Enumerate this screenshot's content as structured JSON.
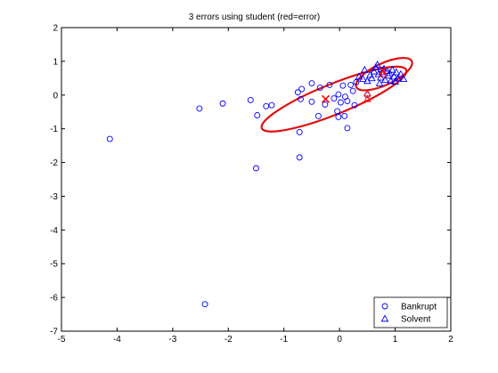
{
  "chart_data": {
    "type": "scatter",
    "title": "3 errors using student (red=error)",
    "xlabel": "",
    "ylabel": "",
    "xlim": [
      -5,
      2
    ],
    "ylim": [
      -7,
      2
    ],
    "xticks": [
      "-5",
      "-4",
      "-3",
      "-2",
      "-1",
      "0",
      "1",
      "2"
    ],
    "yticks": [
      "-7",
      "-6",
      "-5",
      "-4",
      "-3",
      "-2",
      "-1",
      "0",
      "1",
      "2"
    ],
    "grid": false,
    "legend_position": "bottom-right",
    "series": [
      {
        "name": "Bankrupt",
        "marker": "circle",
        "color": "#0000ff",
        "points": [
          [
            -4.13,
            -1.3
          ],
          [
            -2.42,
            -6.2
          ],
          [
            -2.52,
            -0.4
          ],
          [
            -2.1,
            -0.25
          ],
          [
            -1.6,
            -0.15
          ],
          [
            -1.48,
            -0.6
          ],
          [
            -1.5,
            -2.17
          ],
          [
            -1.32,
            -0.33
          ],
          [
            -1.22,
            -0.3
          ],
          [
            -0.75,
            0.08
          ],
          [
            -0.68,
            0.18
          ],
          [
            -0.7,
            -0.12
          ],
          [
            -0.72,
            -1.1
          ],
          [
            -0.72,
            -1.85
          ],
          [
            -0.5,
            0.35
          ],
          [
            -0.5,
            -0.2
          ],
          [
            -0.38,
            -0.62
          ],
          [
            -0.35,
            0.22
          ],
          [
            -0.26,
            -0.28
          ],
          [
            -0.18,
            0.3
          ],
          [
            -0.1,
            -0.1
          ],
          [
            -0.02,
            0.02
          ],
          [
            -0.04,
            -0.48
          ],
          [
            -0.02,
            -0.65
          ],
          [
            0.02,
            -0.22
          ],
          [
            0.06,
            0.28
          ],
          [
            0.09,
            -0.62
          ],
          [
            0.1,
            -0.05
          ],
          [
            0.14,
            -0.18
          ],
          [
            0.14,
            -0.98
          ],
          [
            0.2,
            0.3
          ],
          [
            0.24,
            0.12
          ],
          [
            0.27,
            -0.3
          ],
          [
            0.3,
            0.38
          ],
          [
            0.5,
            0.0
          ],
          [
            0.75,
            0.75
          ]
        ]
      },
      {
        "name": "Solvent",
        "marker": "triangle",
        "color": "#0000ff",
        "points": [
          [
            0.35,
            0.55
          ],
          [
            0.42,
            0.48
          ],
          [
            0.45,
            0.75
          ],
          [
            0.5,
            0.42
          ],
          [
            0.55,
            0.6
          ],
          [
            0.58,
            0.5
          ],
          [
            0.62,
            0.7
          ],
          [
            0.65,
            0.82
          ],
          [
            0.68,
            0.9
          ],
          [
            0.7,
            0.62
          ],
          [
            0.72,
            0.35
          ],
          [
            0.74,
            0.52
          ],
          [
            0.76,
            0.68
          ],
          [
            0.8,
            0.78
          ],
          [
            0.82,
            0.45
          ],
          [
            0.85,
            0.72
          ],
          [
            0.88,
            0.58
          ],
          [
            0.9,
            0.65
          ],
          [
            0.92,
            0.42
          ],
          [
            0.95,
            0.75
          ],
          [
            0.98,
            0.55
          ],
          [
            1.0,
            0.4
          ],
          [
            1.02,
            0.68
          ],
          [
            1.05,
            0.5
          ],
          [
            1.1,
            0.62
          ],
          [
            1.15,
            0.48
          ]
        ]
      }
    ],
    "errors": {
      "color": "#ff0000",
      "points": [
        {
          "x": 0.5,
          "y": -0.12,
          "marker": "triangle"
        },
        {
          "x": 0.5,
          "y": 0.05,
          "marker": "triangle"
        },
        {
          "x": 0.78,
          "y": 0.62,
          "marker": "triangle"
        }
      ]
    },
    "class_means": [
      {
        "x": -0.25,
        "y": -0.12,
        "marker": "cross",
        "color": "#ff0000"
      },
      {
        "x": 0.78,
        "y": 0.72,
        "marker": "cross",
        "color": "#ff0000"
      }
    ],
    "ellipses": [
      {
        "cx": -0.1,
        "cy": -0.12,
        "rx": 1.4,
        "ry": 0.45,
        "angle_deg": 22,
        "color": "#e01010"
      },
      {
        "cx": 0.8,
        "cy": 0.62,
        "rx": 0.55,
        "ry": 0.32,
        "angle_deg": 25,
        "color": "#e01010"
      }
    ],
    "legend": {
      "entries": [
        {
          "label": "Bankrupt",
          "marker": "circle",
          "color": "#0000ff"
        },
        {
          "label": "Solvent",
          "marker": "triangle",
          "color": "#0000ff"
        }
      ]
    }
  }
}
